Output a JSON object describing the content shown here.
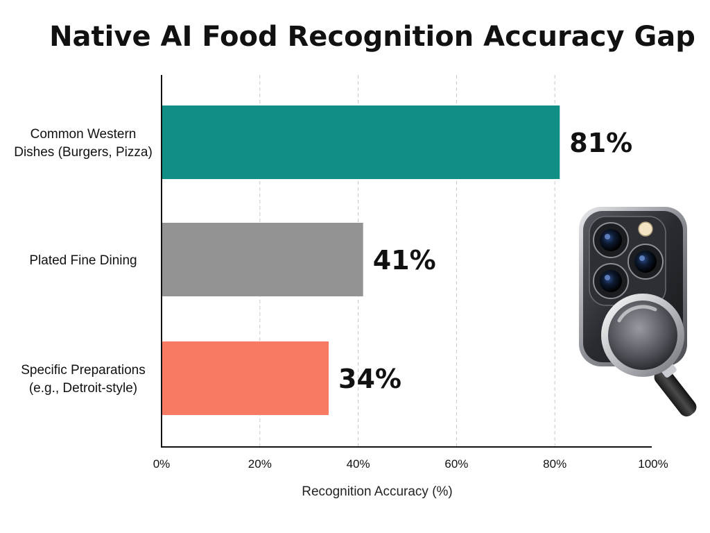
{
  "chart_data": {
    "type": "bar",
    "orientation": "horizontal",
    "title": "Native AI Food Recognition Accuracy Gap",
    "xlabel": "Recognition Accuracy (%)",
    "ylabel": "",
    "xlim": [
      0,
      100
    ],
    "x_ticks": [
      "0%",
      "20%",
      "40%",
      "60%",
      "80%",
      "100%"
    ],
    "grid": "vertical-dashed",
    "categories": [
      [
        "Common Western",
        "Dishes (Burgers, Pizza)"
      ],
      [
        "Plated Fine Dining"
      ],
      [
        "Specific Preparations",
        "(e.g., Detroit-style)"
      ]
    ],
    "values": [
      81,
      41,
      34
    ],
    "data_labels": [
      "81%",
      "41%",
      "34%"
    ],
    "bar_colors": [
      "#128f85",
      "#939393",
      "#f97a63"
    ]
  },
  "illustration": {
    "icon": "phone-camera-magnifier-icon"
  }
}
